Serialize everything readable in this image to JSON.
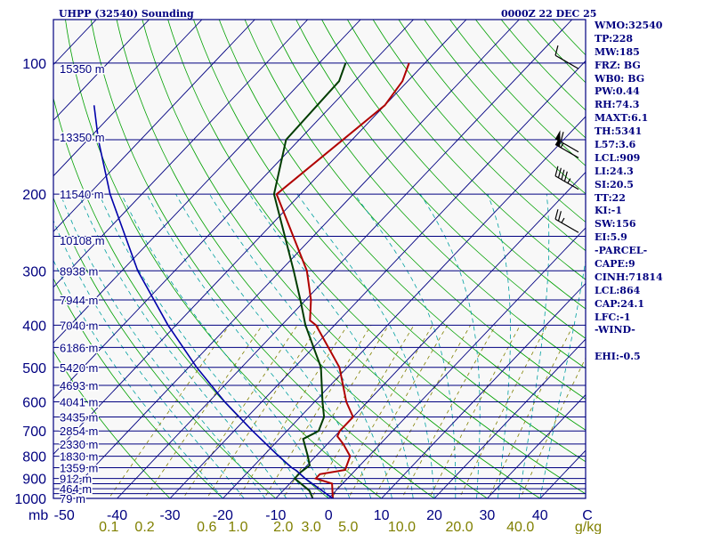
{
  "header": {
    "station_title": "UHPP (32540) Sounding",
    "time_title": "0000Z 22 DEC 25"
  },
  "indices": [
    "WMO:32540",
    "TP:228",
    "MW:185",
    "FRZ: BG",
    "WB0: BG",
    "PW:0.44",
    "RH:74.3",
    "MAXT:6.1",
    "TH:5341",
    "L57:3.6",
    "LCL:909",
    "LI:24.3",
    "SI:20.5",
    "TT:22",
    "KI:-1",
    "SW:156",
    "EI:5.9",
    "-PARCEL-",
    "CAPE:9",
    "CINH:71814",
    "LCL:864",
    "CAP:24.1",
    "LFC:-1",
    "-WIND-",
    "",
    "EHI:-0.5"
  ],
  "chart_data": {
    "type": "line",
    "diagram": "skew-T log-P",
    "pressure_axis_unit": "mb",
    "temperature_axis_unit": "C",
    "mixing_ratio_unit": "g/kg",
    "pressure_ticks": [
      "100",
      "200",
      "300",
      "400",
      "500",
      "600",
      "700",
      "800",
      "900",
      "1000"
    ],
    "temperature_ticks": [
      "-50",
      "-40",
      "-30",
      "-20",
      "-10",
      "0",
      "10",
      "20",
      "30",
      "40"
    ],
    "mixing_ratio_ticks": [
      "0.1",
      "0.2",
      "0.6",
      "1.0",
      "2.0",
      "3.0",
      "5.0",
      "10.0",
      "20.0",
      "40.0"
    ],
    "height_labels": [
      {
        "p": 103,
        "label": "15350 m"
      },
      {
        "p": 148,
        "label": "13350 m"
      },
      {
        "p": 200,
        "label": "11540 m"
      },
      {
        "p": 255,
        "label": "10108 m"
      },
      {
        "p": 300,
        "label": "8938 m"
      },
      {
        "p": 350,
        "label": "7944 m"
      },
      {
        "p": 400,
        "label": "7040 m"
      },
      {
        "p": 450,
        "label": "6186 m"
      },
      {
        "p": 500,
        "label": "5420 m"
      },
      {
        "p": 550,
        "label": "4693 m"
      },
      {
        "p": 600,
        "label": "4041 m"
      },
      {
        "p": 650,
        "label": "3435 m"
      },
      {
        "p": 700,
        "label": "2854 m"
      },
      {
        "p": 750,
        "label": "2330 m"
      },
      {
        "p": 800,
        "label": "1830 m"
      },
      {
        "p": 850,
        "label": "1359 m"
      },
      {
        "p": 900,
        "label": "912 m"
      },
      {
        "p": 950,
        "label": "464 m"
      },
      {
        "p": 1000,
        "label": "79 m"
      }
    ],
    "series": [
      {
        "kind": "temperature",
        "color": "#b00000",
        "points": [
          {
            "p": 1000,
            "t": 0.8
          },
          {
            "p": 925,
            "t": -2.0
          },
          {
            "p": 900,
            "t": -6.0
          },
          {
            "p": 880,
            "t": -6.0
          },
          {
            "p": 860,
            "t": -2.0
          },
          {
            "p": 800,
            "t": -3.5
          },
          {
            "p": 750,
            "t": -7.0
          },
          {
            "p": 720,
            "t": -9.5
          },
          {
            "p": 700,
            "t": -10.0
          },
          {
            "p": 650,
            "t": -10.0
          },
          {
            "p": 600,
            "t": -14.0
          },
          {
            "p": 500,
            "t": -21.5
          },
          {
            "p": 400,
            "t": -33.5
          },
          {
            "p": 390,
            "t": -35.5
          },
          {
            "p": 350,
            "t": -39.0
          },
          {
            "p": 300,
            "t": -45.0
          },
          {
            "p": 200,
            "t": -64.5
          },
          {
            "p": 125,
            "t": -60.0
          },
          {
            "p": 110,
            "t": -61.0
          },
          {
            "p": 100,
            "t": -63.0
          }
        ]
      },
      {
        "kind": "dewpoint",
        "color": "#003c00",
        "points": [
          {
            "p": 1000,
            "t": -3.0
          },
          {
            "p": 960,
            "t": -5.0
          },
          {
            "p": 900,
            "t": -10.0
          },
          {
            "p": 870,
            "t": -10.0
          },
          {
            "p": 840,
            "t": -9.5
          },
          {
            "p": 800,
            "t": -11.5
          },
          {
            "p": 730,
            "t": -15.5
          },
          {
            "p": 710,
            "t": -14.5
          },
          {
            "p": 700,
            "t": -14.0
          },
          {
            "p": 650,
            "t": -15.5
          },
          {
            "p": 600,
            "t": -18.5
          },
          {
            "p": 500,
            "t": -25.0
          },
          {
            "p": 400,
            "t": -35.5
          },
          {
            "p": 350,
            "t": -41.0
          },
          {
            "p": 300,
            "t": -47.5
          },
          {
            "p": 200,
            "t": -65.0
          },
          {
            "p": 150,
            "t": -72.5
          },
          {
            "p": 110,
            "t": -73.0
          },
          {
            "p": 100,
            "t": -75.0
          }
        ]
      },
      {
        "kind": "parcel",
        "color": "#0000aa",
        "points": [
          {
            "p": 1000,
            "t": 0.8
          },
          {
            "p": 950,
            "t": -3.5
          },
          {
            "p": 900,
            "t": -8.0
          },
          {
            "p": 864,
            "t": -11.0
          },
          {
            "p": 850,
            "t": -12.5
          },
          {
            "p": 800,
            "t": -17.0
          },
          {
            "p": 700,
            "t": -26.5
          },
          {
            "p": 600,
            "t": -37.0
          },
          {
            "p": 500,
            "t": -48.5
          },
          {
            "p": 400,
            "t": -61.5
          },
          {
            "p": 300,
            "t": -77.0
          },
          {
            "p": 200,
            "t": -96.0
          },
          {
            "p": 150,
            "t": -108.0
          },
          {
            "p": 125,
            "t": -115.0
          }
        ]
      }
    ],
    "wind_barbs": [
      {
        "p": 103,
        "dir": 300,
        "speed_kt": 10
      },
      {
        "p": 160,
        "dir": 300,
        "speed_kt": 60
      },
      {
        "p": 165,
        "dir": 300,
        "speed_kt": 55
      },
      {
        "p": 195,
        "dir": 300,
        "speed_kt": 45
      },
      {
        "p": 245,
        "dir": 300,
        "speed_kt": 25
      }
    ],
    "colors": {
      "frame": "#000080",
      "isobar": "#000080",
      "isotherm": "#000080",
      "dry_adiabat": "#00a000",
      "moist_adiabat": "#00a0a0",
      "mixing_ratio": "#808000",
      "mixing_label": "#808000",
      "temperature": "#b00000",
      "dewpoint": "#003c00",
      "parcel": "#0000aa",
      "text": "#000080",
      "background": "#f8f8f8"
    }
  }
}
